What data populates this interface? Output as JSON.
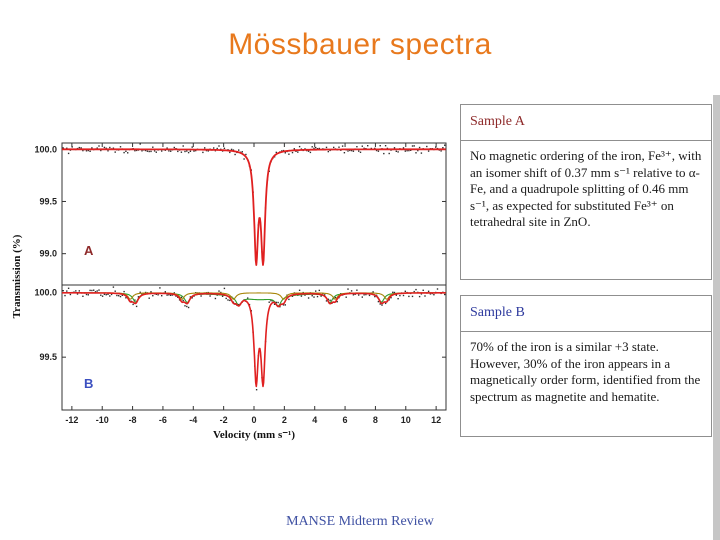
{
  "slide": {
    "title": "Mössbauer spectra",
    "footer": "MANSE Midterm Review"
  },
  "colors": {
    "title": "#e8791d",
    "sample_a_heading": "#8e2a2a",
    "sample_b_heading": "#2e3a9e",
    "body_text": "#1a1a1a",
    "footer": "#3f51a3",
    "fit_total": "#e02020",
    "component_green": "#2f9e2f",
    "component_olive": "#a8860b",
    "data_points": "#2e2e2e"
  },
  "boxes": {
    "sample_a": {
      "heading": "Sample A",
      "body": "No magnetic ordering of the iron, Fe³⁺, with an isomer shift of 0.37 mm s⁻¹ relative to α-Fe, and a quadrupole splitting of 0.46 mm s⁻¹, as expected for substituted Fe³⁺ on tetrahedral site in ZnO."
    },
    "sample_b": {
      "heading": "Sample B",
      "body": "70% of the iron is a similar +3 state. However, 30% of the iron appears in a magnetically order form, identified from the spectrum as magnetite and hematite."
    }
  },
  "chart_data": {
    "type": "line",
    "title": "",
    "xlabel": "Velocity (mm s⁻¹)",
    "ylabel": "Transmission (%)",
    "xlim": [
      -12.65,
      12.65
    ],
    "x_ticks": [
      -12,
      -10,
      -8,
      -6,
      -4,
      -2,
      0,
      2,
      4,
      6,
      8,
      10,
      12
    ],
    "grid": false,
    "legend": "none",
    "panels": [
      {
        "label": "A",
        "label_color": "#8e2a2a",
        "ylim": [
          98.7,
          100.06
        ],
        "y_ticks": [
          "100.0",
          "99.5",
          "99.0"
        ],
        "baseline": 100.0,
        "noise_sigma": 0.018,
        "scatter_from": "fit-total",
        "curves": [
          {
            "name": "fit-total",
            "color": "#e02020",
            "width": 1.8,
            "lorentzians": [
              {
                "center": 0.14,
                "depth": 1.0,
                "hwhm": 0.16
              },
              {
                "center": 0.6,
                "depth": 1.0,
                "hwhm": 0.16
              }
            ]
          }
        ]
      },
      {
        "label": "B",
        "label_color": "#3b4fc0",
        "ylim": [
          99.09,
          100.06
        ],
        "y_ticks": [
          "100.0",
          "99.5"
        ],
        "baseline": 100.0,
        "noise_sigma": 0.02,
        "scatter_from": "fit-total",
        "curves": [
          {
            "name": "sextet-magnetite",
            "color": "#2f9e2f",
            "width": 1.1,
            "lorentzians": [
              {
                "center": -7.8,
                "depth": 0.07,
                "hwhm": 0.22
              },
              {
                "center": -4.4,
                "depth": 0.07,
                "hwhm": 0.22
              },
              {
                "center": -1.0,
                "depth": 0.07,
                "hwhm": 0.22
              },
              {
                "center": 1.6,
                "depth": 0.07,
                "hwhm": 0.22
              },
              {
                "center": 5.0,
                "depth": 0.07,
                "hwhm": 0.22
              },
              {
                "center": 8.4,
                "depth": 0.07,
                "hwhm": 0.22
              },
              {
                "center": 0.37,
                "depth": 0.05,
                "hwhm": 1.6
              }
            ]
          },
          {
            "name": "sextet-hematite",
            "color": "#a8860b",
            "width": 1.1,
            "lorentzians": [
              {
                "center": -8.15,
                "depth": 0.05,
                "hwhm": 0.2
              },
              {
                "center": -4.75,
                "depth": 0.05,
                "hwhm": 0.2
              },
              {
                "center": -1.35,
                "depth": 0.05,
                "hwhm": 0.2
              },
              {
                "center": 1.95,
                "depth": 0.05,
                "hwhm": 0.2
              },
              {
                "center": 5.35,
                "depth": 0.05,
                "hwhm": 0.2
              },
              {
                "center": 8.75,
                "depth": 0.05,
                "hwhm": 0.2
              }
            ]
          },
          {
            "name": "fit-total",
            "color": "#e02020",
            "width": 1.6,
            "lorentzians": [
              {
                "center": 0.14,
                "depth": 0.65,
                "hwhm": 0.16
              },
              {
                "center": 0.6,
                "depth": 0.65,
                "hwhm": 0.16
              },
              {
                "center": -7.8,
                "depth": 0.07,
                "hwhm": 0.22
              },
              {
                "center": -4.4,
                "depth": 0.07,
                "hwhm": 0.22
              },
              {
                "center": -1.0,
                "depth": 0.07,
                "hwhm": 0.22
              },
              {
                "center": 1.6,
                "depth": 0.07,
                "hwhm": 0.22
              },
              {
                "center": 5.0,
                "depth": 0.07,
                "hwhm": 0.22
              },
              {
                "center": 8.4,
                "depth": 0.07,
                "hwhm": 0.22
              },
              {
                "center": -8.15,
                "depth": 0.05,
                "hwhm": 0.2
              },
              {
                "center": -4.75,
                "depth": 0.05,
                "hwhm": 0.2
              },
              {
                "center": -1.35,
                "depth": 0.05,
                "hwhm": 0.2
              },
              {
                "center": 1.95,
                "depth": 0.05,
                "hwhm": 0.2
              },
              {
                "center": 5.35,
                "depth": 0.05,
                "hwhm": 0.2
              },
              {
                "center": 8.75,
                "depth": 0.05,
                "hwhm": 0.2
              }
            ]
          }
        ]
      }
    ]
  }
}
